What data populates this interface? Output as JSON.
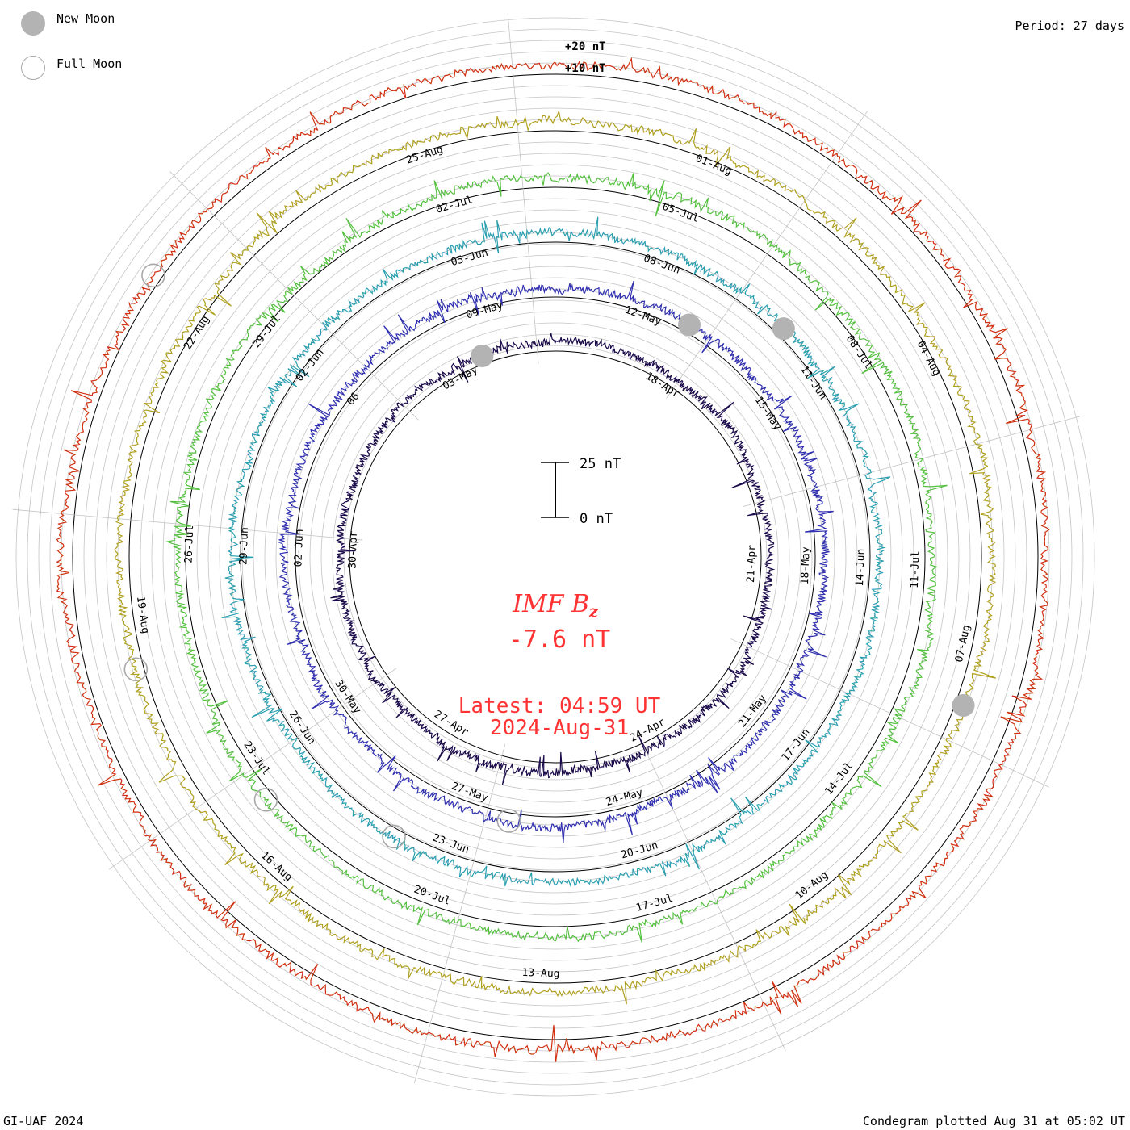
{
  "legend": {
    "new_moon_label": "New Moon",
    "full_moon_label": "Full Moon",
    "new_moon_color": "#b3b3b3",
    "full_moon_color": "#a8a8a8"
  },
  "header": {
    "period": "Period: 27 days"
  },
  "footer": {
    "credit": "GI-UAF 2024",
    "plotted": "Condegram plotted Aug 31 at 05:02 UT"
  },
  "center": {
    "title_main": "IMF B",
    "title_sub": "z",
    "value": "-7.6 nT",
    "latest": "Latest: 04:59 UT",
    "date": "2024-Aug-31",
    "text_color": "#ff3333"
  },
  "scale_bar": {
    "top_label": "25 nT",
    "bottom_label": "0 nT"
  },
  "chart_data": {
    "type": "line",
    "title": "IMF B",
    "title_subscript": "z",
    "units": "nT",
    "period_days": 27,
    "offset_labels": [
      "+20 nT",
      "+10 nT"
    ],
    "rings": [
      {
        "index": 0,
        "color": "#1a0a4a",
        "labels": [
          "18-Apr",
          "21-Apr",
          "24-Apr",
          "27-Apr",
          "30-Apr",
          "03-May"
        ]
      },
      {
        "index": 1,
        "color": "#3030b0",
        "labels": [
          "12-May",
          "15-May",
          "18-May",
          "21-May",
          "24-May",
          "27-May",
          "30-May",
          "02-Jun",
          "06",
          "09-May"
        ]
      },
      {
        "index": 2,
        "color": "#2a9fb0",
        "labels": [
          "08-Jun",
          "11-Jun",
          "14-Jun",
          "17-Jun",
          "20-Jun",
          "23-Jun",
          "26-Jun",
          "29-Jun",
          "02-Jun",
          "05-Jun"
        ]
      },
      {
        "index": 3,
        "color": "#55c040",
        "labels": [
          "05-Jul",
          "08-Jul",
          "11-Jul",
          "14-Jul",
          "17-Jul",
          "20-Jul",
          "23-Jul",
          "26-Jul",
          "29-Jul",
          "02-Jul"
        ]
      },
      {
        "index": 4,
        "color": "#b0a020",
        "labels": [
          "01-Aug",
          "04-Aug",
          "07-Aug",
          "10-Aug",
          "13-Aug",
          "16-Aug",
          "19-Aug",
          "22-Aug",
          "25-Aug"
        ]
      },
      {
        "index": 5,
        "color": "#d03010",
        "labels": []
      }
    ],
    "new_moons": [
      {
        "ring": 0,
        "angle_deg": 250
      },
      {
        "ring": 1,
        "angle_deg": 300
      },
      {
        "ring": 2,
        "angle_deg": 315
      },
      {
        "ring": 4,
        "angle_deg": 20
      }
    ],
    "full_moons": [
      {
        "ring": 1,
        "angle_deg": 100
      },
      {
        "ring": 2,
        "angle_deg": 120
      },
      {
        "ring": 3,
        "angle_deg": 140
      },
      {
        "ring": 4,
        "angle_deg": 165
      },
      {
        "ring": 5,
        "angle_deg": 215
      }
    ],
    "latest_value": -7.6,
    "latest_time": "04:59 UT",
    "latest_date": "2024-Aug-31"
  }
}
